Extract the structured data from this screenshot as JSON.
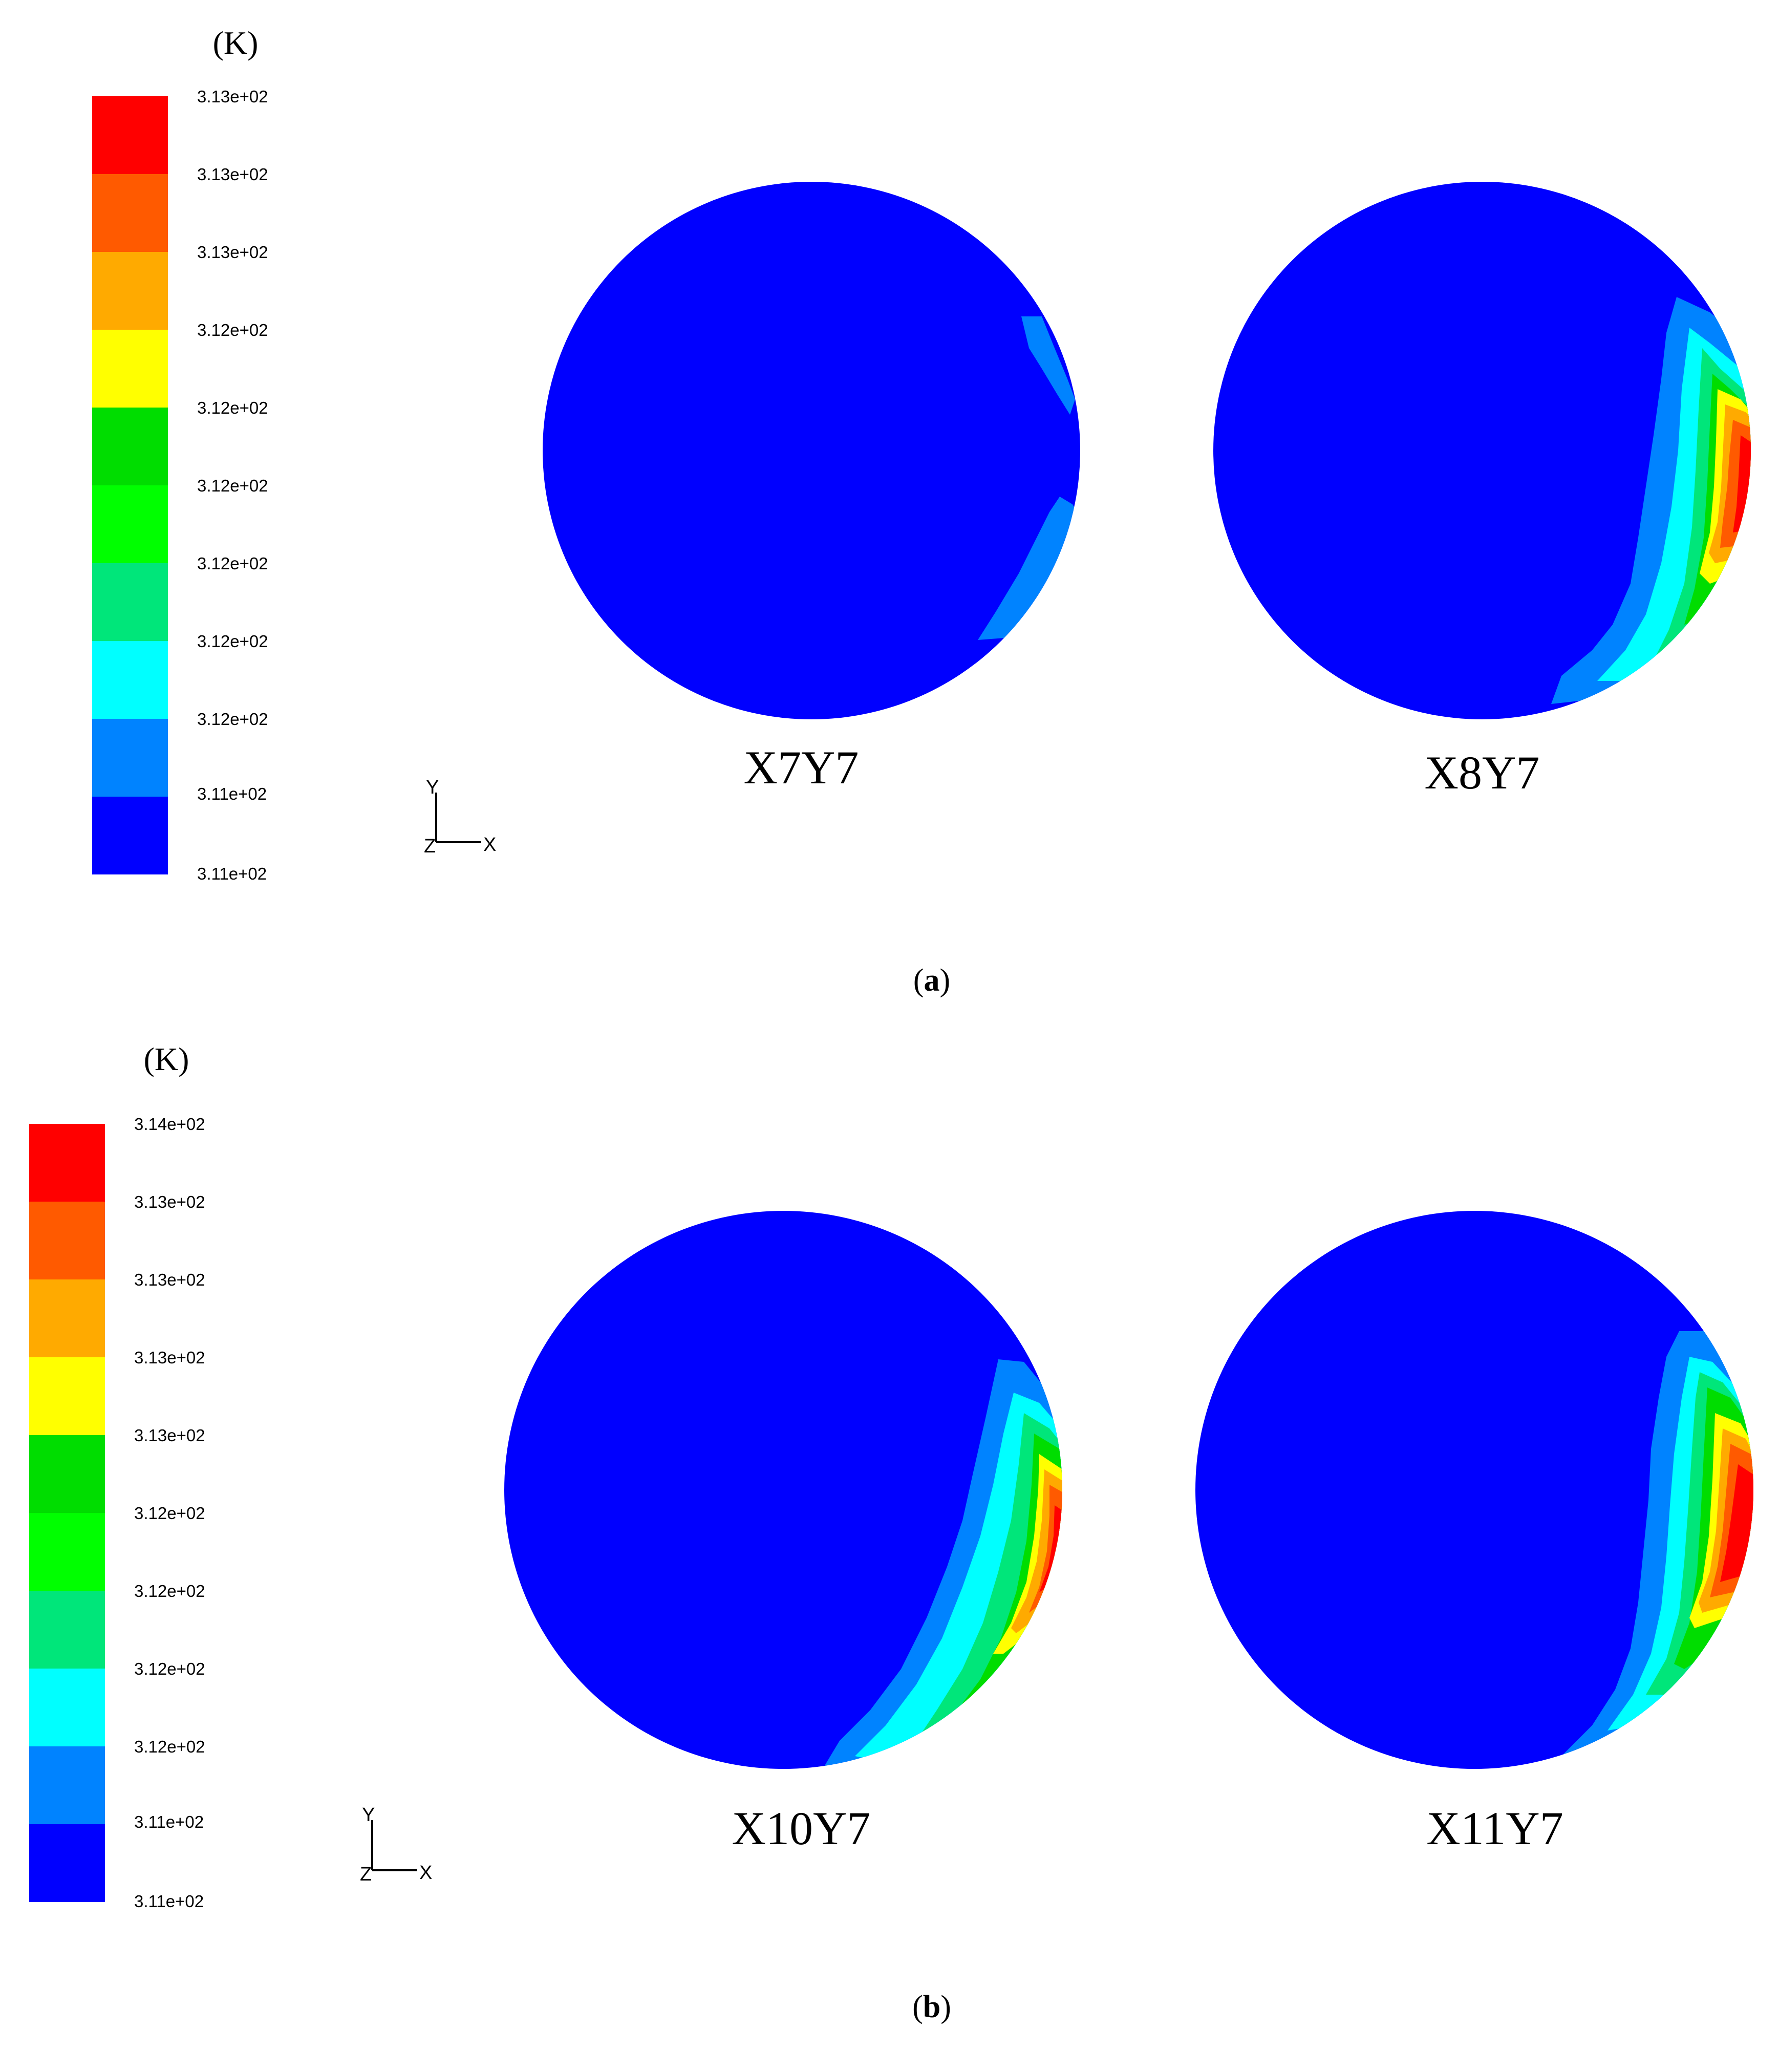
{
  "panels": [
    {
      "id": "a",
      "caption_open": "(",
      "caption_letter": "a",
      "caption_close": ")",
      "legend": {
        "unit": "(K)",
        "ticks": [
          "3.13e+02",
          "3.13e+02",
          "3.13e+02",
          "3.12e+02",
          "3.12e+02",
          "3.12e+02",
          "3.12e+02",
          "3.12e+02",
          "3.12e+02",
          "3.11e+02",
          "3.11e+02"
        ],
        "colors": [
          "#ff0000",
          "#ff5a00",
          "#ffaa00",
          "#ffff00",
          "#00dd00",
          "#00ff00",
          "#00e67a",
          "#00ffff",
          "#0083ff",
          "#0000ff"
        ]
      },
      "axes": {
        "y": "Y",
        "z": "Z",
        "x": "X"
      },
      "circles": [
        {
          "label": "X7Y7",
          "hot_spot": "none"
        },
        {
          "label": "X8Y7",
          "hot_spot": "right-edge"
        }
      ]
    },
    {
      "id": "b",
      "caption_open": "(",
      "caption_letter": "b",
      "caption_close": ")",
      "legend": {
        "unit": "(K)",
        "ticks": [
          "3.14e+02",
          "3.13e+02",
          "3.13e+02",
          "3.13e+02",
          "3.13e+02",
          "3.12e+02",
          "3.12e+02",
          "3.12e+02",
          "3.12e+02",
          "3.11e+02",
          "3.11e+02"
        ],
        "colors": [
          "#ff0000",
          "#ff5a00",
          "#ffaa00",
          "#ffff00",
          "#00dd00",
          "#00ff00",
          "#00e67a",
          "#00ffff",
          "#0083ff",
          "#0000ff"
        ]
      },
      "axes": {
        "y": "Y",
        "z": "Z",
        "x": "X"
      },
      "circles": [
        {
          "label": "X10Y7",
          "hot_spot": "right-edge"
        },
        {
          "label": "X11Y7",
          "hot_spot": "right-edge"
        }
      ]
    }
  ]
}
